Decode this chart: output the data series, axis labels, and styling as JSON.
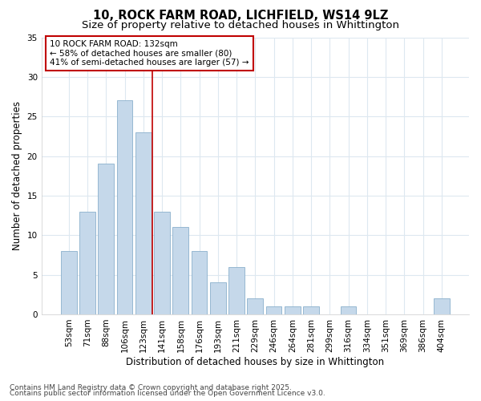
{
  "title1": "10, ROCK FARM ROAD, LICHFIELD, WS14 9LZ",
  "title2": "Size of property relative to detached houses in Whittington",
  "xlabel": "Distribution of detached houses by size in Whittington",
  "ylabel": "Number of detached properties",
  "categories": [
    "53sqm",
    "71sqm",
    "88sqm",
    "106sqm",
    "123sqm",
    "141sqm",
    "158sqm",
    "176sqm",
    "193sqm",
    "211sqm",
    "229sqm",
    "246sqm",
    "264sqm",
    "281sqm",
    "299sqm",
    "316sqm",
    "334sqm",
    "351sqm",
    "369sqm",
    "386sqm",
    "404sqm"
  ],
  "values": [
    8,
    13,
    19,
    27,
    23,
    13,
    11,
    8,
    4,
    6,
    2,
    1,
    1,
    1,
    0,
    1,
    0,
    0,
    0,
    0,
    2
  ],
  "bar_color": "#c5d8ea",
  "bar_edge_color": "#8ab0cc",
  "vline_color": "#c00000",
  "vline_index": 5,
  "annotation_text": "10 ROCK FARM ROAD: 132sqm\n← 58% of detached houses are smaller (80)\n41% of semi-detached houses are larger (57) →",
  "annotation_box_color": "#ffffff",
  "annotation_box_edge": "#c00000",
  "ylim": [
    0,
    35
  ],
  "yticks": [
    0,
    5,
    10,
    15,
    20,
    25,
    30,
    35
  ],
  "footer1": "Contains HM Land Registry data © Crown copyright and database right 2025.",
  "footer2": "Contains public sector information licensed under the Open Government Licence v3.0.",
  "bg_color": "#ffffff",
  "plot_bg_color": "#ffffff",
  "grid_color": "#dde8f0",
  "title_fontsize": 10.5,
  "subtitle_fontsize": 9.5,
  "tick_fontsize": 7.5,
  "ylabel_fontsize": 8.5,
  "xlabel_fontsize": 8.5,
  "footer_fontsize": 6.5
}
